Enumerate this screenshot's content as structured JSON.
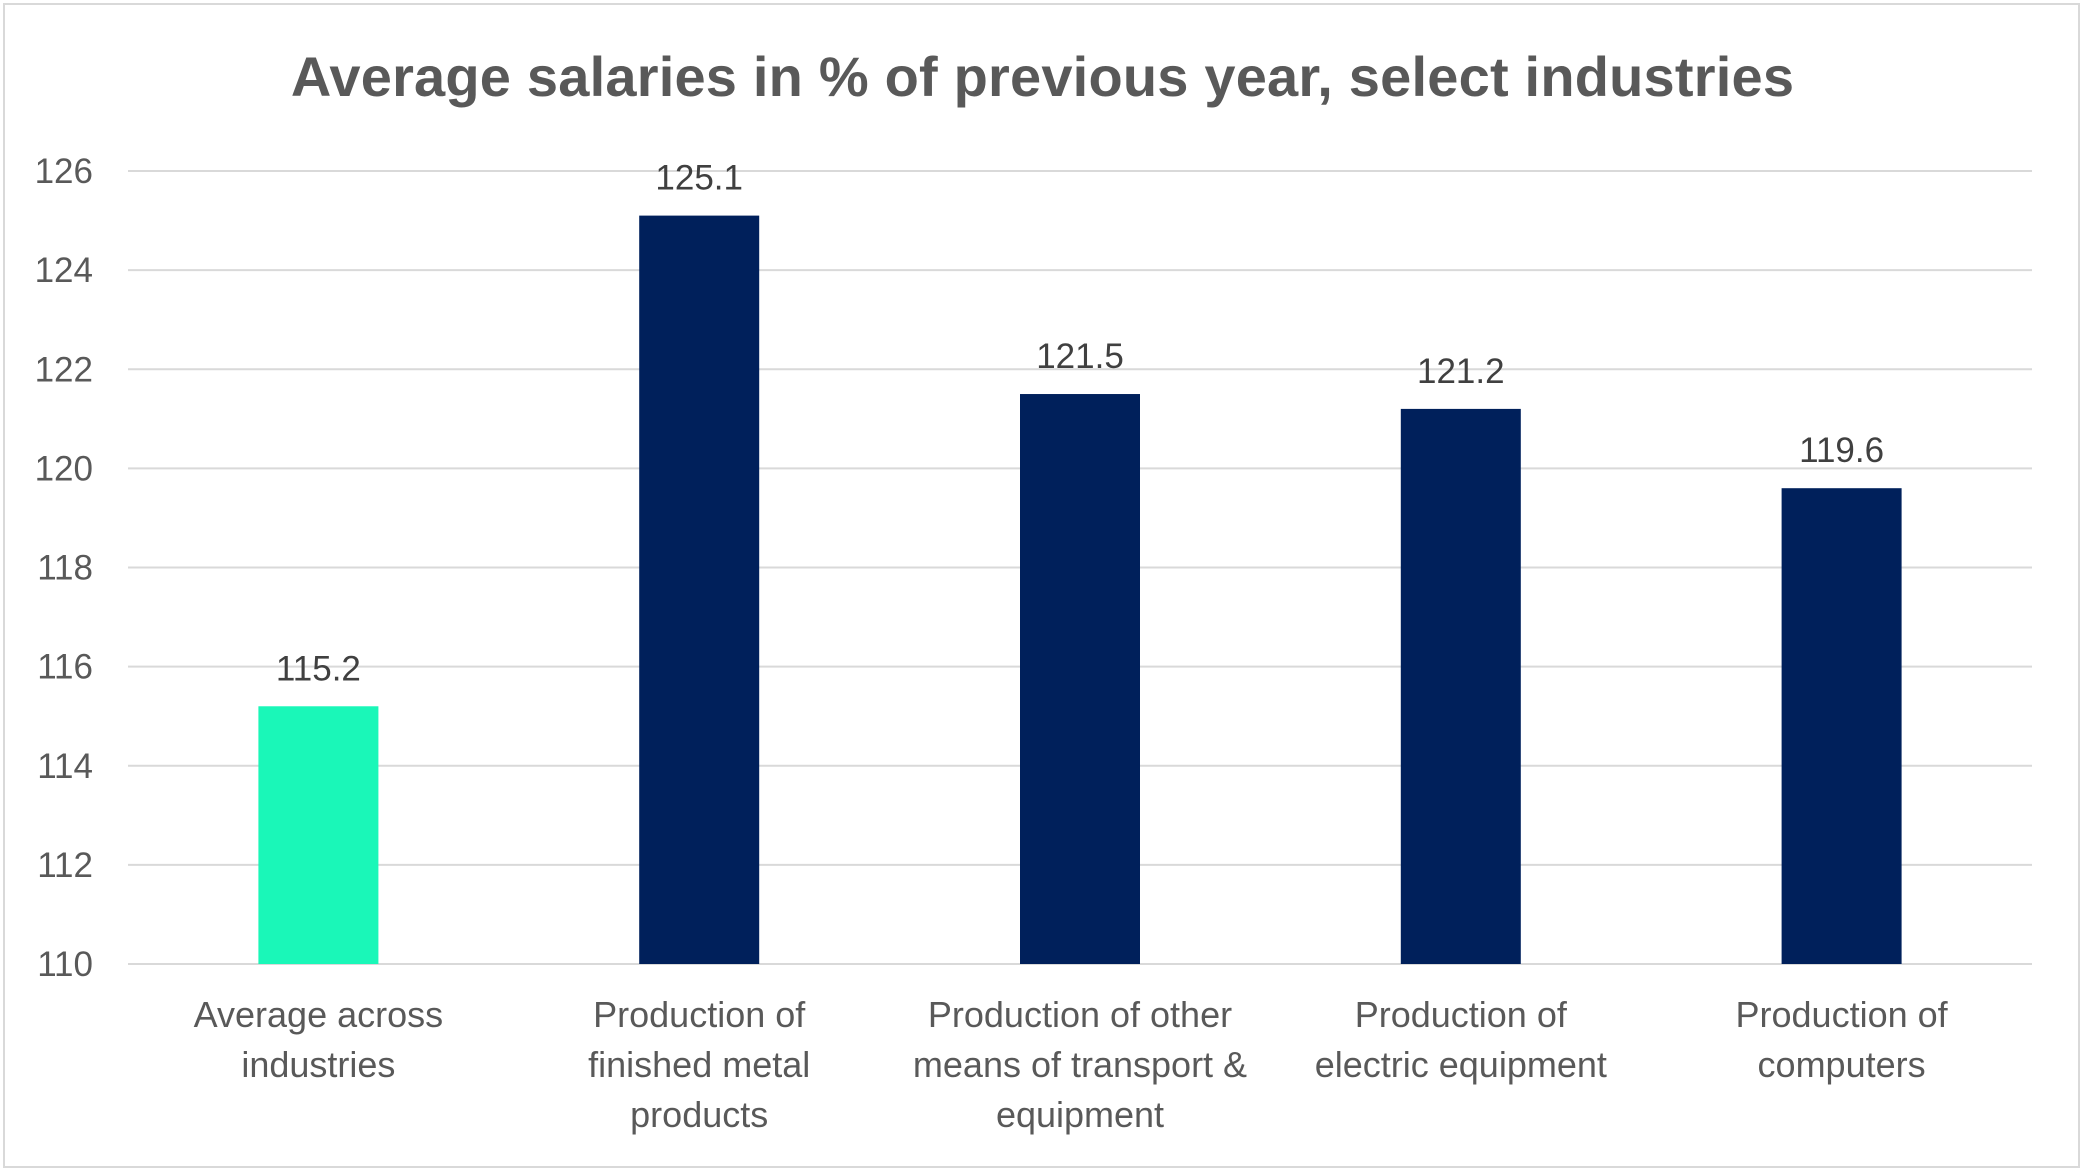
{
  "chart_data": {
    "type": "bar",
    "title": "Average salaries in % of previous year, select industries",
    "xlabel": "",
    "ylabel": "",
    "ylim": [
      110,
      126
    ],
    "yticks": [
      110,
      112,
      114,
      116,
      118,
      120,
      122,
      124,
      126
    ],
    "grid": true,
    "legend": "none",
    "categories": [
      "Average across industries",
      "Production of finished metal products",
      "Production of other means of transport & equipment",
      "Production of electric equipment",
      "Production of computers"
    ],
    "category_label_lines": [
      [
        "Average across",
        "industries"
      ],
      [
        "Production of",
        "finished metal",
        "products"
      ],
      [
        "Production of other",
        "means of transport &",
        "equipment"
      ],
      [
        "Production of",
        "electric equipment"
      ],
      [
        "Production of",
        "computers"
      ]
    ],
    "values": [
      115.2,
      125.1,
      121.5,
      121.2,
      119.6
    ],
    "data_labels": [
      "115.2",
      "125.1",
      "121.5",
      "121.2",
      "119.6"
    ],
    "colors": {
      "highlight": "#1af7b8",
      "bar": "#00205b",
      "grid": "#d9d9d9",
      "text": "#595959"
    },
    "bar_colors": [
      "#1af7b8",
      "#00205b",
      "#00205b",
      "#00205b",
      "#00205b"
    ]
  }
}
